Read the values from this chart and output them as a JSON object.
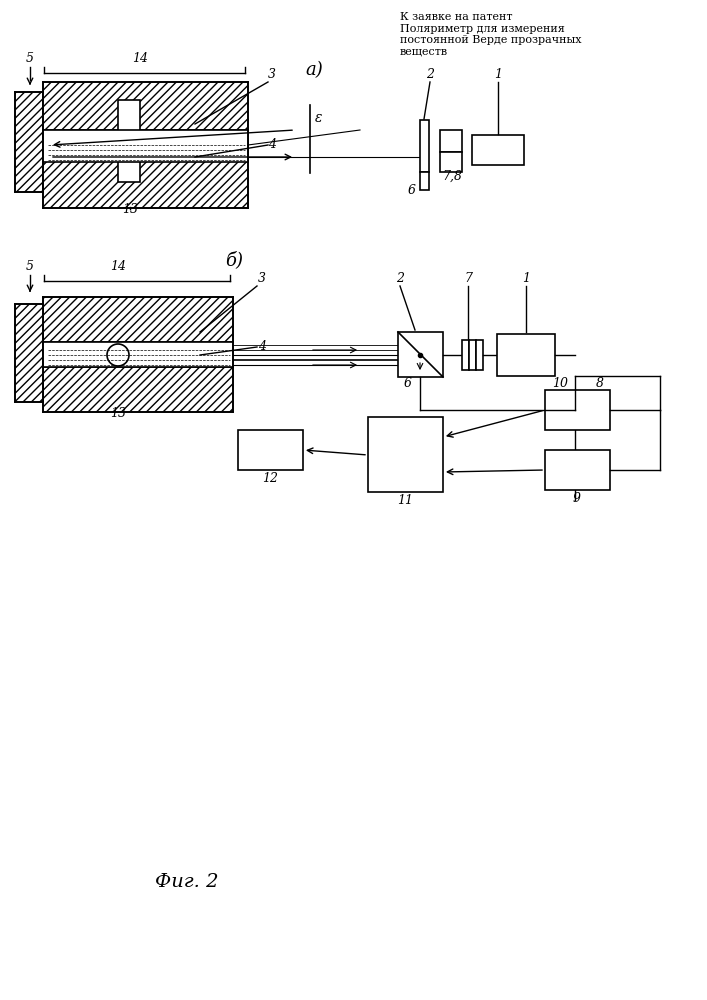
{
  "title_text": "К заявке на патент\nПоляриметр для измерения\nпостоянной Верде прозрачных\nвеществ",
  "fig_label": "Фиг. 2",
  "label_a": "а)",
  "label_b": "б)",
  "bg_color": "#ffffff",
  "line_color": "#000000"
}
